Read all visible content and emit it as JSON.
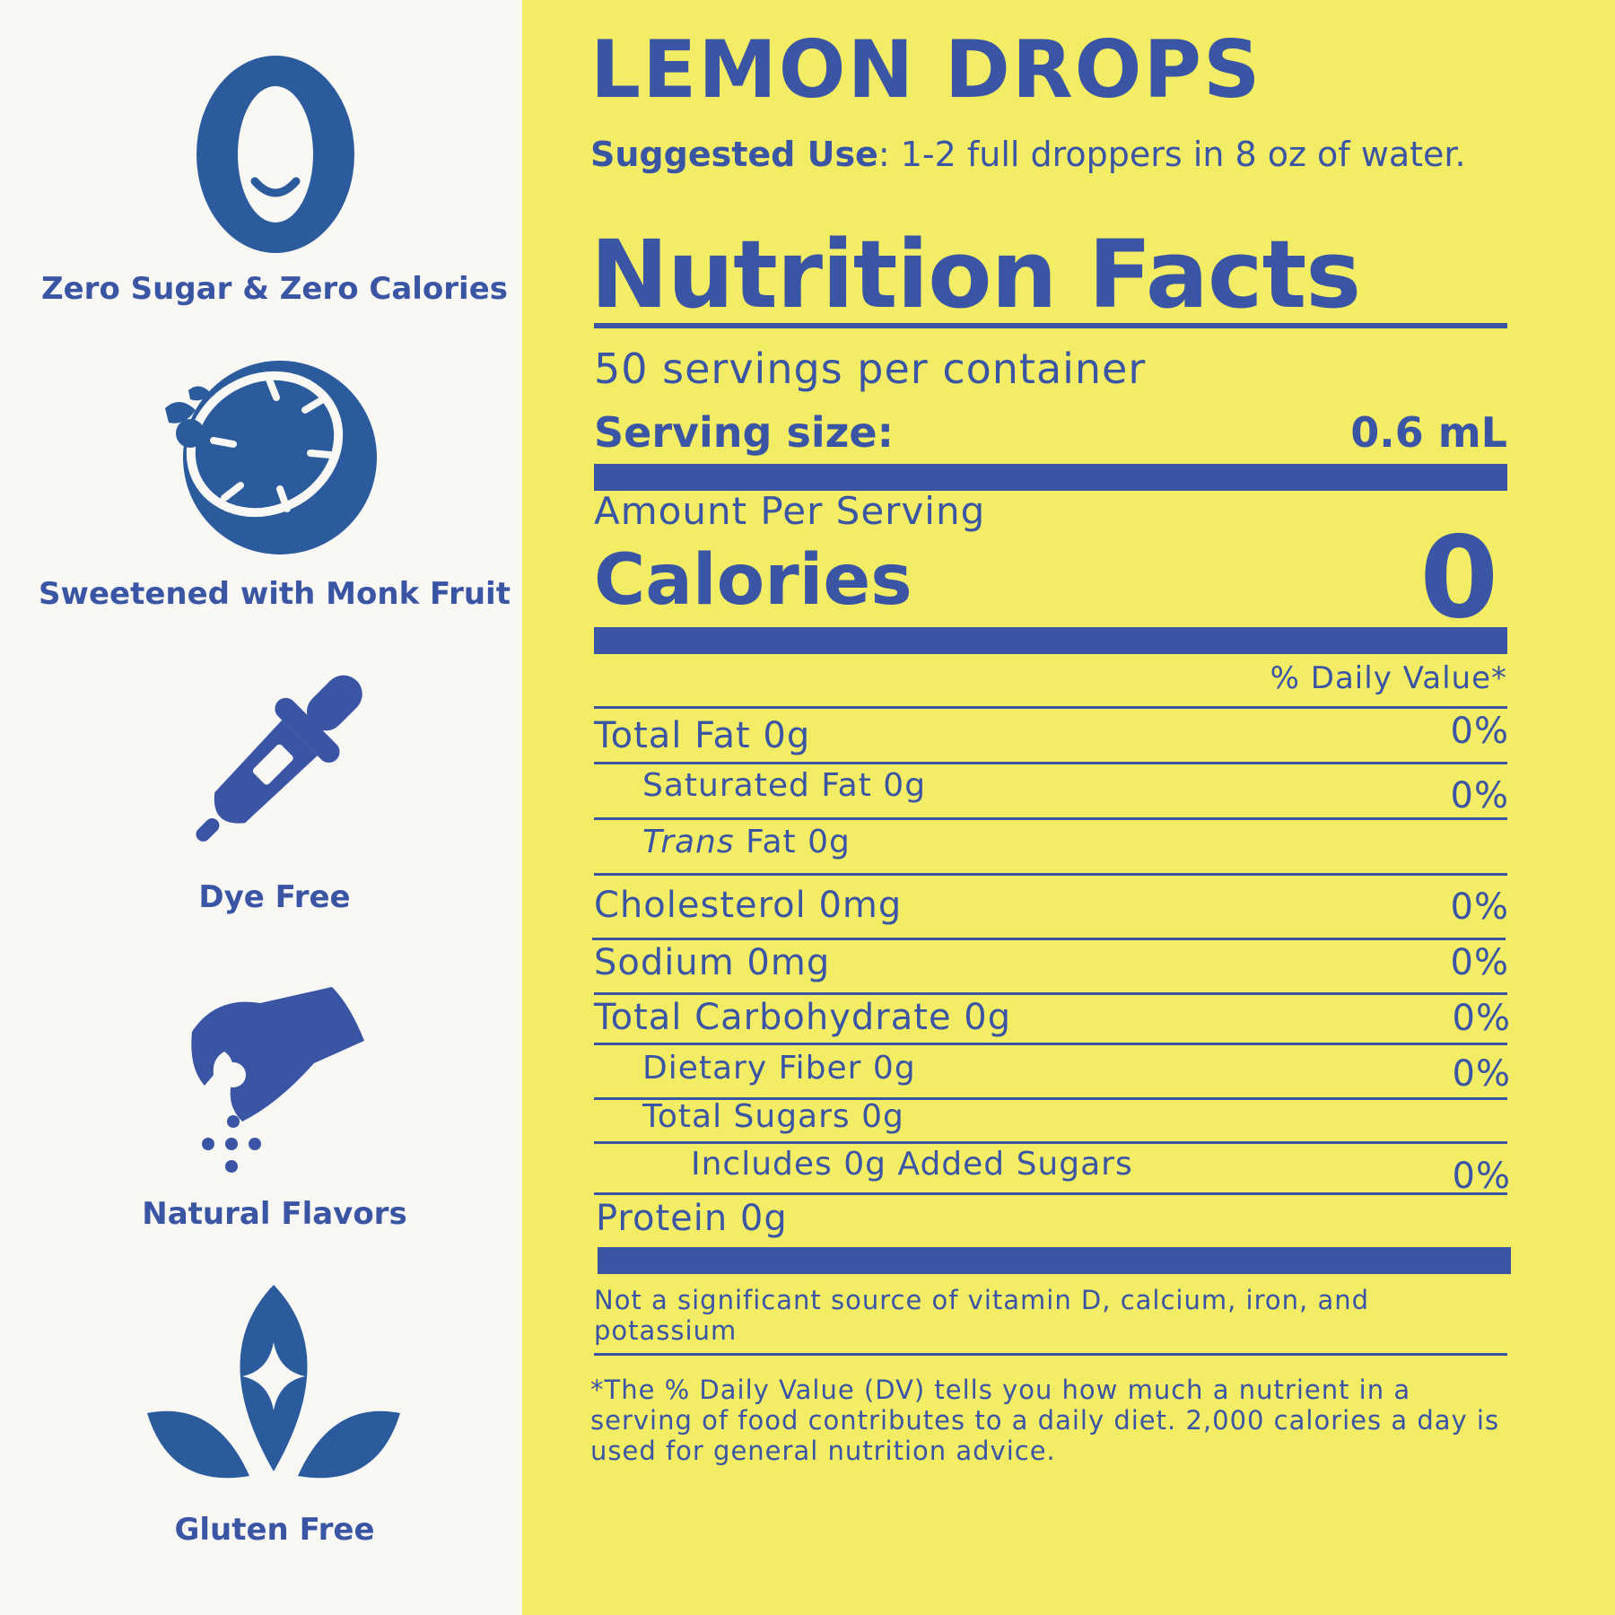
{
  "features": [
    {
      "icon": "zero-icon",
      "label": "Zero Sugar & Zero Calories"
    },
    {
      "icon": "lemon-icon",
      "label": "Sweetened with Monk Fruit"
    },
    {
      "icon": "dropper-icon",
      "label": "Dye Free"
    },
    {
      "icon": "pinch-icon",
      "label": "Natural Flavors"
    },
    {
      "icon": "leaf-sparkle-icon",
      "label": "Gluten Free"
    }
  ],
  "zero_glyph": "0",
  "product": {
    "name": "LEMON DROPS",
    "suggested_use_label": "Suggested Use",
    "suggested_use_text": ": 1-2 full droppers in 8 oz of water."
  },
  "nutrition": {
    "title": "Nutrition Facts",
    "servings_per_container": "50 servings per container",
    "serving_size_label": "Serving size:",
    "serving_size_value": "0.6 mL",
    "amount_per_serving": "Amount Per Serving",
    "calories_label": "Calories",
    "calories_value": "0",
    "daily_value_header": "% Daily Value*",
    "total_fat": {
      "label": "Total Fat 0g",
      "dv": "0%"
    },
    "saturated_fat": {
      "label": "Saturated Fat 0g",
      "dv": "0%"
    },
    "trans_fat": {
      "label_italic": "Trans",
      "label_rest": " Fat 0g"
    },
    "cholesterol": {
      "label": "Cholesterol 0mg",
      "dv": "0%"
    },
    "sodium": {
      "label": "Sodium 0mg",
      "dv": "0%"
    },
    "total_carbohydrate": {
      "label": "Total Carbohydrate 0g",
      "dv": "0%"
    },
    "dietary_fiber": {
      "label": "Dietary Fiber 0g",
      "dv": "0%"
    },
    "total_sugars": {
      "label": "Total Sugars 0g"
    },
    "added_sugars": {
      "label": "Includes 0g Added Sugars",
      "dv": "0%"
    },
    "protein": {
      "label": "Protein 0g"
    },
    "vitamin_note": "Not a significant source of vitamin D, calcium, iron, and potassium",
    "footnote": "*The % Daily Value (DV) tells you how much a nutrient in a serving of food contributes to a daily diet. 2,000 calories a day is used for general nutrition advice."
  },
  "colors": {
    "brand_blue": "#3a55a4",
    "icon_blue": "#2b5b9c",
    "lemon_yellow": "#f3ec65",
    "off_white": "#f9f8f5"
  }
}
